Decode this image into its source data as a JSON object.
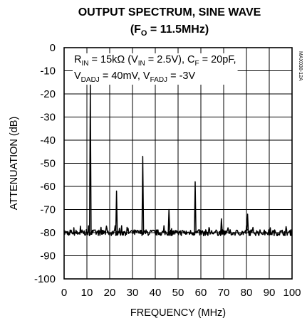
{
  "chart_data": {
    "type": "line",
    "title": "OUTPUT SPECTRUM, SINE WAVE",
    "subtitle": {
      "prefix": "(F",
      "sub": "O",
      "suffix": " = 11.5MHz)"
    },
    "xlabel": "FREQUENCY (MHz)",
    "ylabel": "ATTENUATION (dB)",
    "xlim": [
      0,
      100
    ],
    "ylim": [
      -100,
      0
    ],
    "xticks": [
      0,
      10,
      20,
      30,
      40,
      50,
      60,
      70,
      80,
      90,
      100
    ],
    "yticks": [
      0,
      -10,
      -20,
      -30,
      -40,
      -50,
      -60,
      -70,
      -80,
      -90,
      -100
    ],
    "grid": true,
    "noise_floor_db": -80,
    "noise_range_db": [
      -82,
      -77
    ],
    "series": [
      {
        "peaks": [
          {
            "x": 11.5,
            "y": -16
          },
          {
            "x": 23.0,
            "y": -62
          },
          {
            "x": 34.5,
            "y": -47
          },
          {
            "x": 46.0,
            "y": -70
          },
          {
            "x": 57.5,
            "y": -58
          },
          {
            "x": 69.0,
            "y": -74
          },
          {
            "x": 80.5,
            "y": -72
          }
        ]
      }
    ],
    "annotation": {
      "line1": [
        {
          "t": "R"
        },
        {
          "t": "IN",
          "sub": true
        },
        {
          "t": " = 15kΩ (V"
        },
        {
          "t": "IN",
          "sub": true
        },
        {
          "t": " = 2.5V), C"
        },
        {
          "t": "F",
          "sub": true
        },
        {
          "t": " = 20pF,"
        }
      ],
      "line2": [
        {
          "t": "V"
        },
        {
          "t": "DADJ",
          "sub": true
        },
        {
          "t": " = 40mV, V"
        },
        {
          "t": "FADJ",
          "sub": true
        },
        {
          "t": " = -3V"
        }
      ]
    },
    "figure_code": "MAX038-12A"
  }
}
